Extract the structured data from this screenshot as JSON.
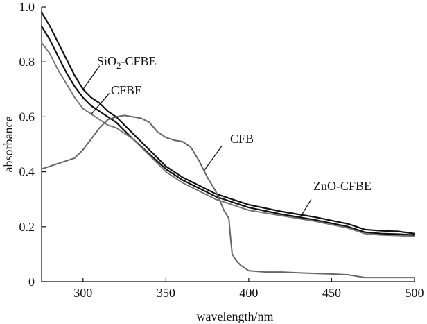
{
  "chart_data": {
    "type": "line",
    "title": "",
    "xlabel": "wavelength/nm",
    "ylabel": "absorbance",
    "xlim": [
      275,
      500
    ],
    "ylim": [
      0,
      1.0
    ],
    "xticks": [
      300,
      350,
      400,
      450,
      500
    ],
    "yticks": [
      0,
      0.2,
      0.4,
      0.6,
      0.8,
      1.0
    ],
    "xtick_labels": [
      "300",
      "350",
      "400",
      "450",
      "500"
    ],
    "ytick_labels": [
      "0",
      "0.2",
      "0.4",
      "0.6",
      "0.8",
      "1.0"
    ],
    "grid": false,
    "series": [
      {
        "name": "SiO2-CFBE",
        "label_main": "SiO",
        "label_sub": "2",
        "label_rest": "-CFBE",
        "color": "#111111",
        "x": [
          275,
          280,
          285,
          290,
          295,
          300,
          305,
          310,
          315,
          320,
          330,
          340,
          350,
          360,
          370,
          380,
          390,
          400,
          420,
          440,
          460,
          470,
          480,
          490,
          500
        ],
        "y": [
          0.98,
          0.93,
          0.87,
          0.81,
          0.75,
          0.7,
          0.67,
          0.65,
          0.62,
          0.6,
          0.54,
          0.48,
          0.42,
          0.38,
          0.35,
          0.32,
          0.3,
          0.28,
          0.255,
          0.235,
          0.21,
          0.19,
          0.185,
          0.183,
          0.175
        ]
      },
      {
        "name": "ZnO-CFBE",
        "label_main": "ZnO-CFBE",
        "color": "#111111",
        "x": [
          275,
          280,
          285,
          290,
          295,
          300,
          305,
          310,
          315,
          320,
          330,
          340,
          350,
          360,
          370,
          380,
          390,
          400,
          420,
          440,
          460,
          470,
          480,
          490,
          500
        ],
        "y": [
          0.93,
          0.88,
          0.82,
          0.76,
          0.71,
          0.67,
          0.64,
          0.62,
          0.6,
          0.58,
          0.52,
          0.465,
          0.41,
          0.37,
          0.34,
          0.31,
          0.29,
          0.27,
          0.245,
          0.225,
          0.2,
          0.18,
          0.175,
          0.173,
          0.17
        ]
      },
      {
        "name": "CFBE",
        "label_main": "CFBE",
        "color": "#777777",
        "x": [
          275,
          280,
          285,
          290,
          295,
          300,
          305,
          310,
          315,
          320,
          330,
          340,
          350,
          360,
          370,
          380,
          390,
          400,
          420,
          440,
          460,
          470,
          480,
          490,
          500
        ],
        "y": [
          0.87,
          0.83,
          0.77,
          0.72,
          0.67,
          0.63,
          0.61,
          0.59,
          0.57,
          0.56,
          0.52,
          0.46,
          0.4,
          0.36,
          0.33,
          0.3,
          0.28,
          0.26,
          0.24,
          0.22,
          0.195,
          0.175,
          0.17,
          0.168,
          0.165
        ]
      },
      {
        "name": "CFB",
        "label_main": "CFB",
        "color": "#666666",
        "x": [
          275,
          280,
          285,
          290,
          295,
          300,
          305,
          310,
          315,
          320,
          325,
          330,
          335,
          340,
          345,
          350,
          355,
          360,
          365,
          370,
          375,
          380,
          383,
          385,
          388,
          389,
          390,
          392,
          395,
          400,
          410,
          420,
          430,
          440,
          450,
          460,
          470,
          480,
          490,
          500
        ],
        "y": [
          0.41,
          0.42,
          0.43,
          0.44,
          0.45,
          0.48,
          0.52,
          0.56,
          0.59,
          0.6,
          0.605,
          0.6,
          0.595,
          0.58,
          0.545,
          0.525,
          0.515,
          0.51,
          0.49,
          0.44,
          0.38,
          0.33,
          0.29,
          0.26,
          0.23,
          0.16,
          0.1,
          0.08,
          0.06,
          0.04,
          0.035,
          0.035,
          0.032,
          0.03,
          0.028,
          0.025,
          0.015,
          0.015,
          0.015,
          0.015
        ]
      }
    ],
    "annotations": [
      {
        "series": "SiO2-CFBE",
        "at_x": 300
      },
      {
        "series": "CFBE",
        "at_x": 305
      },
      {
        "series": "CFB",
        "at_x": 373
      },
      {
        "series": "ZnO-CFBE",
        "at_x": 431
      }
    ]
  }
}
